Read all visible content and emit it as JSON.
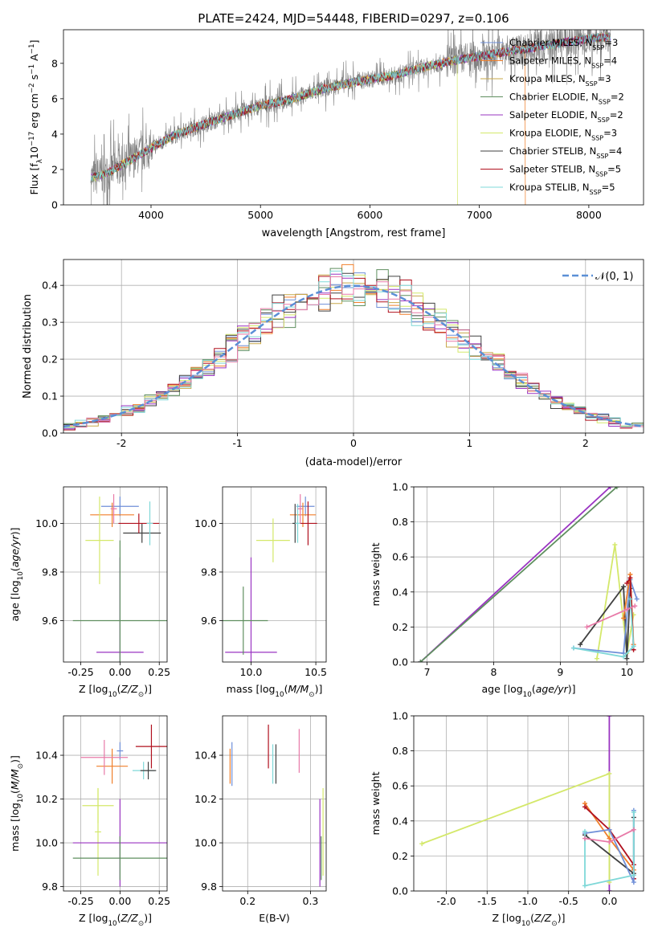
{
  "figure_title": "PLATE=2424, MJD=54448, FIBERID=0297, z=0.106",
  "colors": {
    "Chabrier MILES": "#6f8fd8",
    "Salpeter MILES": "#f07f2a",
    "Kroupa MILES": "#c8a84a",
    "Chabrier ELODIE": "#5f8f5f",
    "Salpeter ELODIE": "#9a34c2",
    "Kroupa ELODIE": "#d4e86a",
    "Chabrier STELIB": "#404040",
    "Salpeter STELIB": "#b0101e",
    "Kroupa STELIB": "#7fd8d8",
    "data": "#808080",
    "normal": "#5b8fd6",
    "pink": "#e87aa8"
  },
  "chart_data": [
    {
      "id": "spectrum",
      "type": "line",
      "xlabel": "wavelength [Angstrom, rest frame]",
      "ylabel": "Flux [f_λ10^-17 erg cm^-2 s^-1 A^-1]",
      "xlim": [
        3200,
        8500
      ],
      "ylim": [
        0,
        9.9
      ],
      "xticks": [
        4000,
        5000,
        6000,
        7000,
        8000
      ],
      "yticks": [
        0,
        2,
        4,
        6,
        8
      ],
      "legend_position": "top-right",
      "legend": [
        {
          "name": "Chabrier MILES",
          "nssp": "3"
        },
        {
          "name": "Salpeter MILES",
          "nssp": "4"
        },
        {
          "name": "Kroupa MILES",
          "nssp": "3"
        },
        {
          "name": "Chabrier ELODIE",
          "nssp": "2"
        },
        {
          "name": "Salpeter ELODIE",
          "nssp": "2"
        },
        {
          "name": "Kroupa ELODIE",
          "nssp": "3"
        },
        {
          "name": "Chabrier STELIB",
          "nssp": "4"
        },
        {
          "name": "Salpeter STELIB",
          "nssp": "5"
        },
        {
          "name": "Kroupa STELIB",
          "nssp": "5"
        }
      ],
      "model_trend": {
        "x": [
          3450,
          3600,
          3800,
          4000,
          4200,
          4500,
          4800,
          5000,
          5300,
          5600,
          5900,
          6200,
          6500,
          6800,
          7100,
          7400,
          7700,
          8000,
          8200
        ],
        "y": [
          1.5,
          1.8,
          2.5,
          3.2,
          3.9,
          4.6,
          5.2,
          5.6,
          6.0,
          6.6,
          7.0,
          7.3,
          7.8,
          8.2,
          8.5,
          8.8,
          9.1,
          9.4,
          9.5
        ]
      },
      "data_noise_amplitude": 0.7
    },
    {
      "id": "residuals",
      "type": "histogram",
      "xlabel": "(data-model)/error",
      "ylabel": "Normed distribution",
      "xlim": [
        -2.5,
        2.5
      ],
      "ylim": [
        0,
        0.47
      ],
      "xticks": [
        -2,
        -1,
        0,
        1,
        2
      ],
      "yticks": [
        0.0,
        0.1,
        0.2,
        0.3,
        0.4
      ],
      "legend_position": "top-right",
      "legend_label": "𝒩(0, 1)",
      "bin_width": 0.1
    },
    {
      "id": "age_vs_Z",
      "type": "scatter",
      "xlabel": "Z [log10(Z/Z⊙)]",
      "ylabel": "age  [log10(age/yr)]",
      "xlim": [
        -0.36,
        0.3
      ],
      "ylim": [
        9.43,
        10.15
      ],
      "xticks": [
        -0.25,
        0.0,
        0.25
      ],
      "yticks": [
        9.6,
        9.8,
        10.0
      ],
      "points": [
        {
          "series": "Chabrier MILES",
          "x": 0.0,
          "y": 10.07,
          "xerr": 0.12,
          "yerr": 0.04
        },
        {
          "series": "Salpeter MILES",
          "x": -0.05,
          "y": 10.035,
          "xerr": 0.14,
          "yerr": 0.05
        },
        {
          "series": "Chabrier STELIB",
          "x": 0.14,
          "y": 9.96,
          "xerr": 0.12,
          "yerr": 0.04
        },
        {
          "series": "Salpeter STELIB",
          "x": 0.12,
          "y": 10.0,
          "xerr": 0.13,
          "yerr": 0.04
        },
        {
          "series": "Kroupa STELIB",
          "x": 0.19,
          "y": 10.0,
          "xerr": 0.02,
          "yerr": 0.09
        },
        {
          "series": "Kroupa ELODIE",
          "x": -0.13,
          "y": 9.93,
          "xerr": 0.09,
          "yerr": 0.18
        },
        {
          "series": "Salpeter ELODIE",
          "x": 0.0,
          "y": 9.47,
          "xerr": 0.15,
          "yerr": 0.39
        },
        {
          "series": "Chabrier ELODIE",
          "x": 0.0,
          "y": 9.6,
          "xerr": 0.3,
          "yerr": 0.33
        },
        {
          "series": "pink",
          "x": -0.04,
          "y": 10.06,
          "xerr": 0.02,
          "yerr": 0.06
        }
      ]
    },
    {
      "id": "age_vs_mass",
      "type": "scatter",
      "xlabel": "mass [log10(M/M⊙)]",
      "ylabel": "",
      "xlim": [
        9.78,
        10.58
      ],
      "ylim": [
        9.43,
        10.15
      ],
      "xticks": [
        10.0,
        10.5
      ],
      "yticks": [
        9.6,
        9.8,
        10.0
      ],
      "points": [
        {
          "series": "Chabrier MILES",
          "x": 10.42,
          "y": 10.07,
          "xerr": 0.07,
          "yerr": 0.04
        },
        {
          "series": "Salpeter MILES",
          "x": 10.4,
          "y": 10.035,
          "xerr": 0.1,
          "yerr": 0.05
        },
        {
          "series": "Chabrier STELIB",
          "x": 10.34,
          "y": 10.0,
          "xerr": 0.02,
          "yerr": 0.08
        },
        {
          "series": "Salpeter STELIB",
          "x": 10.44,
          "y": 10.0,
          "xerr": 0.07,
          "yerr": 0.09
        },
        {
          "series": "Kroupa STELIB",
          "x": 10.36,
          "y": 10.0,
          "xerr": 0.02,
          "yerr": 0.08
        },
        {
          "series": "Kroupa ELODIE",
          "x": 10.17,
          "y": 9.93,
          "xerr": 0.13,
          "yerr": 0.09
        },
        {
          "series": "Salpeter ELODIE",
          "x": 10.0,
          "y": 9.47,
          "xerr": 0.2,
          "yerr": 0.39
        },
        {
          "series": "Chabrier ELODIE",
          "x": 9.94,
          "y": 9.6,
          "xerr": 0.19,
          "yerr": 0.14
        },
        {
          "series": "pink",
          "x": 10.38,
          "y": 10.06,
          "xerr": 0.02,
          "yerr": 0.06
        }
      ]
    },
    {
      "id": "weight_vs_age",
      "type": "line",
      "xlabel": "age  [log10(age/yr)]",
      "ylabel": "mass weight",
      "xlim": [
        6.8,
        10.25
      ],
      "ylim": [
        0,
        1.0
      ],
      "xticks": [
        7,
        8,
        9,
        10
      ],
      "yticks": [
        0.0,
        0.2,
        0.4,
        0.6,
        0.8,
        1.0
      ],
      "series": [
        {
          "name": "Salpeter ELODIE",
          "x": [
            6.9,
            9.75
          ],
          "y": [
            0.0,
            1.0
          ]
        },
        {
          "name": "Chabrier ELODIE",
          "x": [
            6.9,
            9.85
          ],
          "y": [
            0.0,
            1.0
          ]
        },
        {
          "name": "Kroupa ELODIE",
          "x": [
            9.55,
            9.82,
            10.0,
            10.1
          ],
          "y": [
            0.02,
            0.67,
            0.05,
            0.27
          ]
        },
        {
          "name": "Chabrier STELIB",
          "x": [
            9.3,
            9.95,
            10.0,
            10.05
          ],
          "y": [
            0.1,
            0.43,
            0.02,
            0.42
          ]
        },
        {
          "name": "Chabrier MILES",
          "x": [
            9.2,
            9.95,
            10.05,
            10.15
          ],
          "y": [
            0.08,
            0.05,
            0.47,
            0.36
          ]
        },
        {
          "name": "Salpeter MILES",
          "x": [
            9.95,
            10.05,
            10.1
          ],
          "y": [
            0.25,
            0.5,
            0.1
          ]
        },
        {
          "name": "Salpeter STELIB",
          "x": [
            10.0,
            10.05,
            10.1
          ],
          "y": [
            0.45,
            0.48,
            0.07
          ]
        },
        {
          "name": "Kroupa STELIB",
          "x": [
            9.2,
            9.95,
            10.1,
            10.05
          ],
          "y": [
            0.08,
            0.03,
            0.09,
            0.36
          ]
        },
        {
          "name": "pink",
          "x": [
            9.4,
            10.0,
            10.12
          ],
          "y": [
            0.2,
            0.3,
            0.32
          ]
        }
      ]
    },
    {
      "id": "mass_vs_Z",
      "type": "scatter",
      "xlabel": "Z [log10(Z/Z⊙)]",
      "ylabel": "mass [log10(M/M⊙)]",
      "xlim": [
        -0.36,
        0.3
      ],
      "ylim": [
        9.78,
        10.58
      ],
      "xticks": [
        -0.25,
        0.0,
        0.25
      ],
      "yticks": [
        9.8,
        10.0,
        10.2,
        10.4
      ],
      "points": [
        {
          "series": "Chabrier MILES",
          "x": 0.0,
          "y": 10.42,
          "xerr": 0.02,
          "yerr": 0.04
        },
        {
          "series": "Salpeter MILES",
          "x": -0.05,
          "y": 10.35,
          "xerr": 0.1,
          "yerr": 0.08
        },
        {
          "series": "pink",
          "x": -0.1,
          "y": 10.39,
          "xerr": 0.15,
          "yerr": 0.08
        },
        {
          "series": "Salpeter STELIB",
          "x": 0.2,
          "y": 10.44,
          "xerr": 0.1,
          "yerr": 0.1
        },
        {
          "series": "Kroupa STELIB",
          "x": 0.15,
          "y": 10.33,
          "xerr": 0.07,
          "yerr": 0.04
        },
        {
          "series": "Chabrier STELIB",
          "x": 0.18,
          "y": 10.33,
          "xerr": 0.05,
          "yerr": 0.04
        },
        {
          "series": "Kroupa ELODIE",
          "x": -0.14,
          "y": 10.17,
          "xerr": 0.1,
          "yerr": 0.08
        },
        {
          "series": "Kroupa ELODIE",
          "x": -0.14,
          "y": 10.05,
          "xerr": 0.02,
          "yerr": 0.2
        },
        {
          "series": "Salpeter ELODIE",
          "x": 0.0,
          "y": 10.0,
          "xerr": 0.3,
          "yerr": 0.2
        },
        {
          "series": "Chabrier ELODIE",
          "x": 0.0,
          "y": 9.93,
          "xerr": 0.3,
          "yerr": 0.1
        }
      ]
    },
    {
      "id": "mass_vs_ebv",
      "type": "scatter",
      "xlabel": "E(B-V)",
      "ylabel": "",
      "xlim": [
        0.16,
        0.325
      ],
      "ylim": [
        9.78,
        10.58
      ],
      "xticks": [
        0.2,
        0.3
      ],
      "yticks": [
        9.8,
        10.0,
        10.2,
        10.4
      ],
      "points": [
        {
          "series": "Chabrier MILES",
          "x": 0.175,
          "y": 10.36,
          "yerr": 0.1
        },
        {
          "series": "Salpeter MILES",
          "x": 0.172,
          "y": 10.35,
          "yerr": 0.08
        },
        {
          "series": "Salpeter STELIB",
          "x": 0.233,
          "y": 10.44,
          "yerr": 0.1
        },
        {
          "series": "Kroupa STELIB",
          "x": 0.24,
          "y": 10.36,
          "yerr": 0.09
        },
        {
          "series": "Chabrier STELIB",
          "x": 0.245,
          "y": 10.36,
          "yerr": 0.09
        },
        {
          "series": "pink",
          "x": 0.282,
          "y": 10.42,
          "yerr": 0.1
        },
        {
          "series": "Kroupa ELODIE",
          "x": 0.32,
          "y": 10.05,
          "yerr": 0.2
        },
        {
          "series": "Salpeter ELODIE",
          "x": 0.315,
          "y": 10.0,
          "yerr": 0.2
        },
        {
          "series": "Chabrier ELODIE",
          "x": 0.317,
          "y": 9.93,
          "yerr": 0.1
        }
      ]
    },
    {
      "id": "weight_vs_Z",
      "type": "line",
      "xlabel": "Z [log10(Z/Z⊙)]",
      "ylabel": "mass weight",
      "xlim": [
        -2.4,
        0.42
      ],
      "ylim": [
        0,
        1.0
      ],
      "xticks": [
        -2.0,
        -1.5,
        -1.0,
        -0.5,
        0.0
      ],
      "yticks": [
        0.0,
        0.2,
        0.4,
        0.6,
        0.8,
        1.0
      ],
      "series": [
        {
          "name": "Salpeter ELODIE",
          "x": [
            0.0,
            0.0
          ],
          "y": [
            0.0,
            1.0
          ]
        },
        {
          "name": "Kroupa ELODIE",
          "x": [
            -2.3,
            0.0,
            0.0
          ],
          "y": [
            0.27,
            0.67,
            0.05
          ]
        },
        {
          "name": "Chabrier STELIB",
          "x": [
            -0.3,
            0.3,
            0.3
          ],
          "y": [
            0.32,
            0.1,
            0.42
          ]
        },
        {
          "name": "Salpeter MILES",
          "x": [
            -0.3,
            0.0,
            0.3
          ],
          "y": [
            0.5,
            0.3,
            0.12
          ]
        },
        {
          "name": "Salpeter STELIB",
          "x": [
            -0.3,
            0.0,
            0.3,
            0.3
          ],
          "y": [
            0.48,
            0.35,
            0.15,
            0.07
          ]
        },
        {
          "name": "Chabrier MILES",
          "x": [
            -0.3,
            0.0,
            0.3,
            0.3
          ],
          "y": [
            0.33,
            0.35,
            0.05,
            0.46
          ]
        },
        {
          "name": "Kroupa STELIB",
          "x": [
            -0.3,
            -0.3,
            0.3,
            0.3
          ],
          "y": [
            0.34,
            0.03,
            0.09,
            0.45
          ]
        },
        {
          "name": "pink",
          "x": [
            -0.3,
            0.0,
            0.3
          ],
          "y": [
            0.3,
            0.28,
            0.35
          ]
        }
      ]
    }
  ]
}
